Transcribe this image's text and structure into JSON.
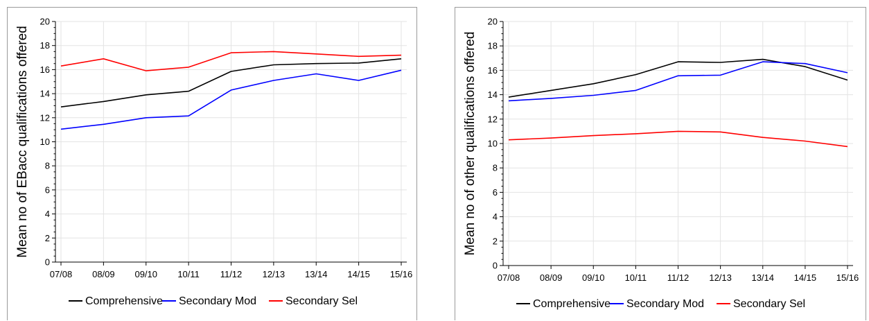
{
  "chart_data": [
    {
      "type": "line",
      "ylabel": "Mean no of EBacc qualifications offered",
      "xlabel": "",
      "categories": [
        "07/08",
        "08/09",
        "09/10",
        "10/11",
        "11/12",
        "12/13",
        "13/14",
        "14/15",
        "15/16"
      ],
      "ylim": [
        0,
        20
      ],
      "yticks": [
        0,
        2,
        4,
        6,
        8,
        10,
        12,
        14,
        16,
        18,
        20
      ],
      "grid": true,
      "legend_position": "bottom",
      "series": [
        {
          "name": "Comprehensive",
          "color": "#000000",
          "values": [
            12.9,
            13.35,
            13.9,
            14.2,
            15.85,
            16.4,
            16.5,
            16.55,
            16.9
          ]
        },
        {
          "name": "Secondary Mod",
          "color": "#0000ff",
          "values": [
            11.05,
            11.45,
            12.0,
            12.15,
            14.3,
            15.1,
            15.65,
            15.1,
            15.95
          ]
        },
        {
          "name": "Secondary Sel",
          "color": "#ff0000",
          "values": [
            16.3,
            16.9,
            15.9,
            16.2,
            17.4,
            17.5,
            17.3,
            17.1,
            17.2
          ]
        }
      ]
    },
    {
      "type": "line",
      "ylabel": "Mean no of other qualifications offered",
      "xlabel": "",
      "categories": [
        "07/08",
        "08/09",
        "09/10",
        "10/11",
        "11/12",
        "12/13",
        "13/14",
        "14/15",
        "15/16"
      ],
      "ylim": [
        0,
        20
      ],
      "yticks": [
        0,
        2,
        4,
        6,
        8,
        10,
        12,
        14,
        16,
        18,
        20
      ],
      "grid": true,
      "legend_position": "bottom",
      "series": [
        {
          "name": "Comprehensive",
          "color": "#000000",
          "values": [
            13.8,
            14.35,
            14.9,
            15.65,
            16.7,
            16.65,
            16.9,
            16.3,
            15.2
          ]
        },
        {
          "name": "Secondary Mod",
          "color": "#0000ff",
          "values": [
            13.5,
            13.7,
            13.95,
            14.35,
            15.55,
            15.6,
            16.7,
            16.55,
            15.8
          ]
        },
        {
          "name": "Secondary Sel",
          "color": "#ff0000",
          "values": [
            10.3,
            10.45,
            10.65,
            10.8,
            11.0,
            10.95,
            10.5,
            10.2,
            9.75
          ]
        }
      ]
    }
  ]
}
